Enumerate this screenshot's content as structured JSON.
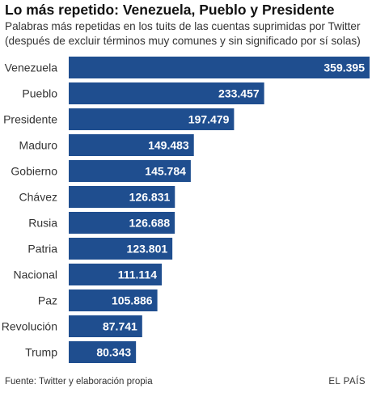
{
  "chart_data": {
    "type": "bar",
    "orientation": "horizontal",
    "title": "Lo más repetido: Venezuela, Pueblo y Presidente",
    "subtitle": [
      "Palabras más repetidas en los tuits de las cuentas suprimidas por Twitter",
      "(después de excluir términos muy comunes y sin significado por sí solas)"
    ],
    "categories": [
      "Venezuela",
      "Pueblo",
      "Presidente",
      "Maduro",
      "Gobierno",
      "Chávez",
      "Rusia",
      "Patria",
      "Nacional",
      "Paz",
      "Revolución",
      "Trump"
    ],
    "values": [
      359395,
      233457,
      197479,
      149483,
      145784,
      126831,
      126688,
      123801,
      111114,
      105886,
      87741,
      80343
    ],
    "value_labels": [
      "359.395",
      "233.457",
      "197.479",
      "149.483",
      "145.784",
      "126.831",
      "126.688",
      "123.801",
      "111.114",
      "105.886",
      "87.741",
      "80.343"
    ],
    "xlim": [
      0,
      359395
    ],
    "grid": false,
    "legend": "none",
    "bar_color": "#1f4e8f",
    "label_color": "#ffffff"
  },
  "footer": {
    "source": "Fuente: Twitter y elaboración propia",
    "brand": "EL PAÍS"
  }
}
